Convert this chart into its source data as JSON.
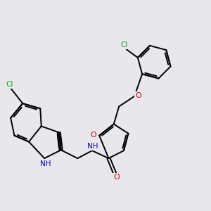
{
  "bg_color": "#e8e8ec",
  "bond_color": "#000000",
  "bond_width": 1.4,
  "atom_colors": {
    "N": "#0000cc",
    "O": "#cc0000",
    "Cl": "#00aa00"
  },
  "font_size": 7.5
}
